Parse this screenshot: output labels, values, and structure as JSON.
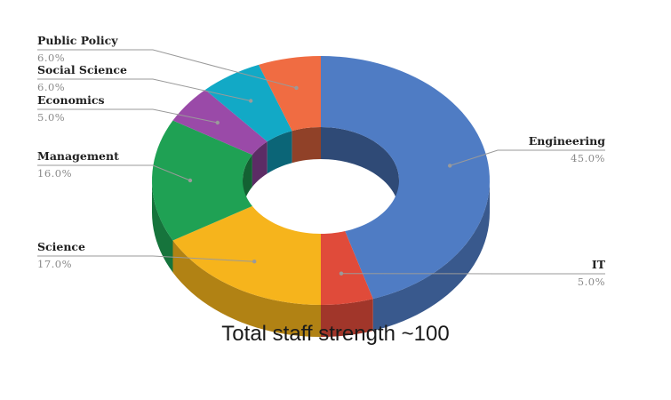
{
  "chart_data": {
    "type": "pie",
    "style": "3d-donut",
    "slices": [
      {
        "label": "Engineering",
        "value": 45.0,
        "pct_text": "45.0%",
        "color": "#4f7cc4",
        "side": "right"
      },
      {
        "label": "IT",
        "value": 5.0,
        "pct_text": "5.0%",
        "color": "#e04b3a",
        "side": "right"
      },
      {
        "label": "Science",
        "value": 17.0,
        "pct_text": "17.0%",
        "color": "#f6b41c",
        "side": "left"
      },
      {
        "label": "Management",
        "value": 16.0,
        "pct_text": "16.0%",
        "color": "#1fa154",
        "side": "left"
      },
      {
        "label": "Economics",
        "value": 5.0,
        "pct_text": "5.0%",
        "color": "#9a4aa8",
        "side": "left"
      },
      {
        "label": "Social Science",
        "value": 6.0,
        "pct_text": "6.0%",
        "color": "#12a9c6",
        "side": "left"
      },
      {
        "label": "Public Policy",
        "value": 6.0,
        "pct_text": "6.0%",
        "color": "#f06c42",
        "side": "left"
      }
    ],
    "caption": "Total staff strength ~100"
  }
}
